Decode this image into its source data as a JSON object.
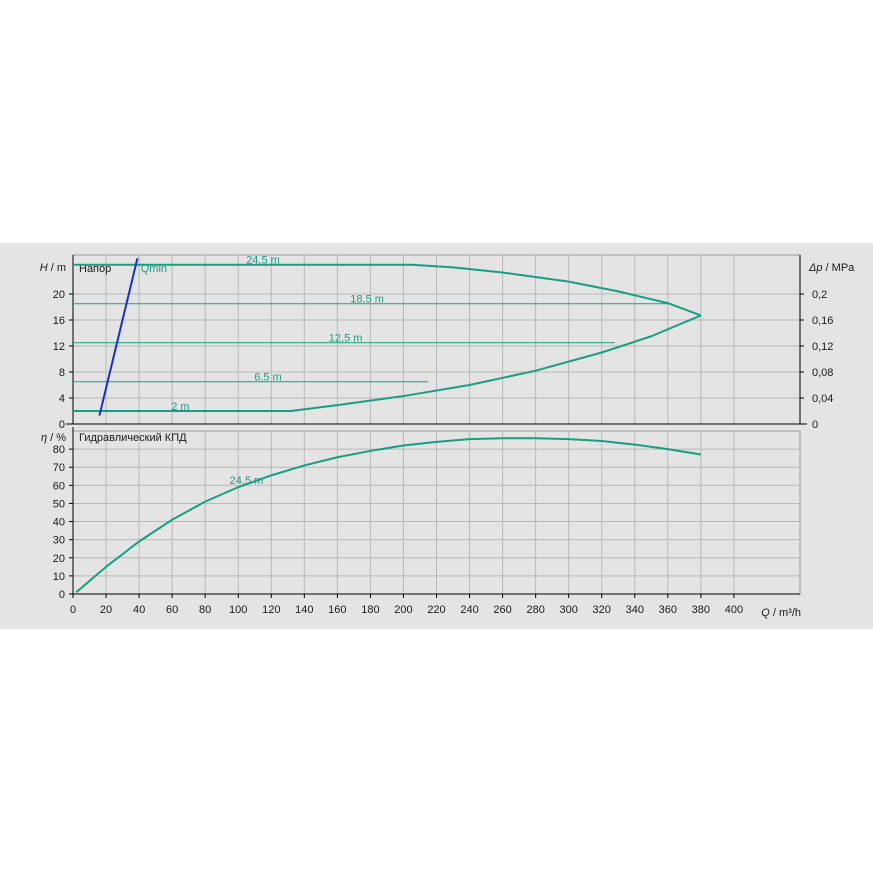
{
  "chart_data": [
    {
      "type": "line",
      "title": "Напор",
      "ylabel_var": "H",
      "ylabel_unit": "/ m",
      "y2label_var": "Δp",
      "y2label_unit": "/ MPa",
      "xlim": [
        0,
        440
      ],
      "ylim": [
        0,
        26
      ],
      "y2lim": [
        0,
        0.26
      ],
      "yticks": [
        0,
        4,
        8,
        12,
        16,
        20
      ],
      "y2ticks": [
        "0",
        "0,04",
        "0,08",
        "0,12",
        "0,16",
        "0,2"
      ],
      "y2tick_values": [
        0,
        0.04,
        0.08,
        0.12,
        0.16,
        0.2
      ],
      "series": [
        {
          "name": "24,5 m",
          "label_at": [
            115,
            25.3
          ],
          "x": [
            0,
            205,
            230,
            260,
            300,
            330,
            360,
            380
          ],
          "y": [
            24.5,
            24.5,
            24.1,
            23.3,
            21.9,
            20.4,
            18.6,
            16.7
          ]
        },
        {
          "name": "18,5 m",
          "label_at": [
            178,
            19.3
          ],
          "x": [
            0,
            360
          ],
          "y": [
            18.5,
            18.5
          ]
        },
        {
          "name": "12,5 m",
          "label_at": [
            165,
            13.3
          ],
          "x": [
            0,
            328
          ],
          "y": [
            12.5,
            12.5
          ]
        },
        {
          "name": "6,5 m",
          "label_at": [
            118,
            7.3
          ],
          "x": [
            0,
            215
          ],
          "y": [
            6.5,
            6.5
          ]
        },
        {
          "name": "2 m",
          "label_at": [
            65,
            2.8
          ],
          "x": [
            0,
            132,
            160,
            200,
            240,
            280,
            320,
            350,
            380
          ],
          "y": [
            2,
            2,
            2.9,
            4.3,
            6,
            8.2,
            11,
            13.5,
            16.7
          ]
        },
        {
          "name": "Qmin",
          "label_at": [
            41,
            24
          ],
          "color": "#1630c8",
          "x": [
            16,
            39
          ],
          "y": [
            1.3,
            25.5
          ]
        }
      ]
    },
    {
      "type": "line",
      "title": "Гидравлический КПД",
      "ylabel_var": "η",
      "ylabel_unit": "/ %",
      "xlabel_var": "Q",
      "xlabel_unit": "/ m³/h",
      "xlim": [
        0,
        440
      ],
      "ylim": [
        0,
        90
      ],
      "yticks": [
        0,
        10,
        20,
        30,
        40,
        50,
        60,
        70,
        80
      ],
      "xticks": [
        0,
        20,
        40,
        60,
        80,
        100,
        120,
        140,
        160,
        180,
        200,
        220,
        240,
        260,
        280,
        300,
        320,
        340,
        360,
        380,
        400
      ],
      "series": [
        {
          "name": "24,5 m",
          "label_at": [
            105,
            63
          ],
          "x": [
            2,
            20,
            40,
            60,
            80,
            100,
            120,
            140,
            160,
            180,
            200,
            220,
            240,
            260,
            280,
            300,
            320,
            340,
            360,
            380
          ],
          "y": [
            1,
            15,
            29,
            41,
            51,
            59,
            65.5,
            71,
            75.5,
            79,
            82,
            84,
            85.5,
            86,
            86,
            85.5,
            84.5,
            82.5,
            80,
            77
          ]
        }
      ]
    }
  ],
  "colors": {
    "curve": "#1a9e82",
    "qmin": "#1630c8",
    "grid": "#b8b8b8",
    "background": "#e4e4e4"
  }
}
